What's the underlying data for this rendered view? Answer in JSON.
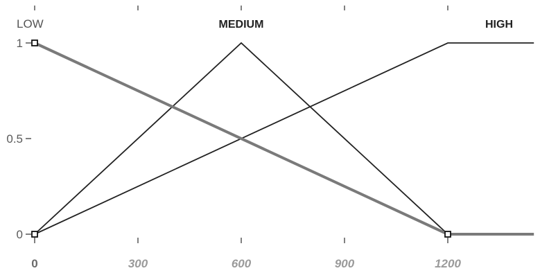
{
  "chart_data": {
    "type": "line",
    "title": "",
    "xlabel": "",
    "ylabel": "",
    "xlim": [
      0,
      1450
    ],
    "ylim": [
      0,
      1
    ],
    "x_ticks": [
      0,
      300,
      600,
      900,
      1200
    ],
    "x_tick_labels": [
      "0",
      "300",
      "600",
      "900",
      "1200"
    ],
    "y_ticks": [
      0,
      0.5,
      1
    ],
    "y_tick_labels": [
      "0",
      "0.5",
      "1"
    ],
    "grid": false,
    "series": [
      {
        "name": "LOW",
        "color": "#7a7a7a",
        "highlighted": true,
        "points": [
          [
            0,
            1
          ],
          [
            1200,
            0
          ],
          [
            1450,
            0
          ]
        ],
        "marker_points": [
          [
            0,
            1
          ],
          [
            1200,
            0
          ]
        ]
      },
      {
        "name": "MEDIUM",
        "color": "#222222",
        "points": [
          [
            0,
            0
          ],
          [
            600,
            1
          ],
          [
            1200,
            0
          ]
        ]
      },
      {
        "name": "HIGH",
        "color": "#222222",
        "points": [
          [
            0,
            0
          ],
          [
            1200,
            1
          ],
          [
            1450,
            1
          ]
        ]
      }
    ],
    "extra_markers": [
      [
        0,
        0
      ]
    ]
  }
}
